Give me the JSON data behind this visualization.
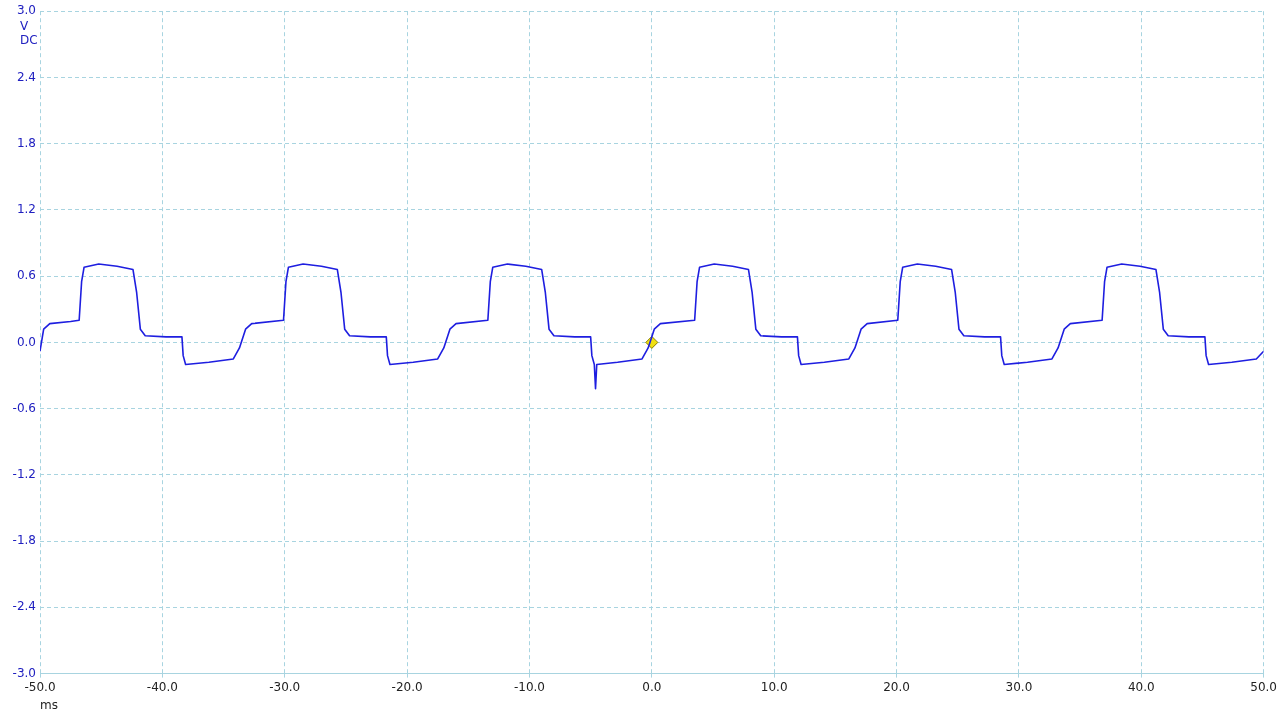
{
  "chart_data": {
    "type": "line",
    "xlabel": "ms",
    "ylabel": "V",
    "annotations": [
      "DC"
    ],
    "xlim": [
      -50,
      50
    ],
    "ylim": [
      -3,
      3
    ],
    "xticks": [
      {
        "value": -50,
        "label": "-50.0"
      },
      {
        "value": -40,
        "label": "-40.0"
      },
      {
        "value": -30,
        "label": "-30.0"
      },
      {
        "value": -20,
        "label": "-20.0"
      },
      {
        "value": -10,
        "label": "-10.0"
      },
      {
        "value": 0,
        "label": "0.0"
      },
      {
        "value": 10,
        "label": "10.0"
      },
      {
        "value": 20,
        "label": "20.0"
      },
      {
        "value": 30,
        "label": "30.0"
      },
      {
        "value": 40,
        "label": "40.0"
      },
      {
        "value": 50,
        "label": "50.0"
      }
    ],
    "yticks": [
      {
        "value": -3,
        "label": "-3.0"
      },
      {
        "value": -2.4,
        "label": "-2.4"
      },
      {
        "value": -1.8,
        "label": "-1.8"
      },
      {
        "value": -1.2,
        "label": "-1.2"
      },
      {
        "value": -0.6,
        "label": "-0.6"
      },
      {
        "value": 0,
        "label": "0.0"
      },
      {
        "value": 0.6,
        "label": "0.6"
      },
      {
        "value": 1.2,
        "label": "1.2"
      },
      {
        "value": 1.8,
        "label": "1.8"
      },
      {
        "value": 2.4,
        "label": "2.4"
      },
      {
        "value": 3,
        "label": "3.0"
      }
    ],
    "grid": true,
    "legend": false,
    "marker": "none",
    "line_style": "solid",
    "series": [
      {
        "color": "#1e1ee0",
        "x": [
          -50,
          -49.7,
          -49.2,
          -47.5,
          -46.8,
          -46.6,
          -46.4,
          -45.2,
          -43.7,
          -42.4,
          -42.1,
          -41.8,
          -41.4,
          -39.7,
          -38.4,
          -38.3,
          -38.1,
          -36.2,
          -34.2,
          -33.7,
          -33.2,
          -32.7,
          -30.1,
          -29.9,
          -29.7,
          -28.5,
          -27,
          -25.7,
          -25.4,
          -25.1,
          -24.7,
          -23,
          -21.7,
          -21.6,
          -21.4,
          -19.5,
          -17.5,
          -17,
          -16.5,
          -16,
          -13.4,
          -13.2,
          -13,
          -11.8,
          -10.3,
          -9,
          -8.7,
          -8.4,
          -8,
          -6.3,
          -5,
          -4.9,
          -4.7,
          -4.6,
          -4.5,
          -2.8,
          -0.8,
          -0.3,
          0.2,
          0.7,
          3.5,
          3.7,
          3.9,
          5.1,
          6.6,
          7.9,
          8.2,
          8.5,
          8.9,
          10.6,
          11.9,
          12,
          12.2,
          14.1,
          16.1,
          16.6,
          17.1,
          17.6,
          20.1,
          20.3,
          20.5,
          21.7,
          23.2,
          24.5,
          24.8,
          25.1,
          25.5,
          27.2,
          28.5,
          28.6,
          28.8,
          30.7,
          32.7,
          33.2,
          33.7,
          34.2,
          36.8,
          37,
          37.2,
          38.4,
          39.9,
          41.2,
          41.5,
          41.8,
          42.2,
          43.9,
          45.2,
          45.3,
          45.5,
          47.4,
          49.4,
          50
        ],
        "values": [
          -0.08,
          0.12,
          0.17,
          0.19,
          0.2,
          0.55,
          0.68,
          0.71,
          0.69,
          0.66,
          0.45,
          0.12,
          0.06,
          0.05,
          0.05,
          -0.12,
          -0.2,
          -0.18,
          -0.15,
          -0.05,
          0.12,
          0.17,
          0.2,
          0.55,
          0.68,
          0.71,
          0.69,
          0.66,
          0.45,
          0.12,
          0.06,
          0.05,
          0.05,
          -0.12,
          -0.2,
          -0.18,
          -0.15,
          -0.05,
          0.12,
          0.17,
          0.2,
          0.55,
          0.68,
          0.71,
          0.69,
          0.66,
          0.45,
          0.12,
          0.06,
          0.05,
          0.05,
          -0.12,
          -0.2,
          -0.42,
          -0.2,
          -0.18,
          -0.15,
          -0.05,
          0.12,
          0.17,
          0.2,
          0.55,
          0.68,
          0.71,
          0.69,
          0.66,
          0.45,
          0.12,
          0.06,
          0.05,
          0.05,
          -0.12,
          -0.2,
          -0.18,
          -0.15,
          -0.05,
          0.12,
          0.17,
          0.2,
          0.55,
          0.68,
          0.71,
          0.69,
          0.66,
          0.45,
          0.12,
          0.06,
          0.05,
          0.05,
          -0.12,
          -0.2,
          -0.18,
          -0.15,
          -0.05,
          0.12,
          0.17,
          0.2,
          0.55,
          0.68,
          0.71,
          0.69,
          0.66,
          0.45,
          0.12,
          0.06,
          0.05,
          0.05,
          -0.12,
          -0.2,
          -0.18,
          -0.15,
          -0.08
        ]
      },
      {
        "type": "scatter",
        "color": "#f0e010",
        "marker": "diamond",
        "x": [
          0
        ],
        "values": [
          0
        ]
      }
    ]
  }
}
